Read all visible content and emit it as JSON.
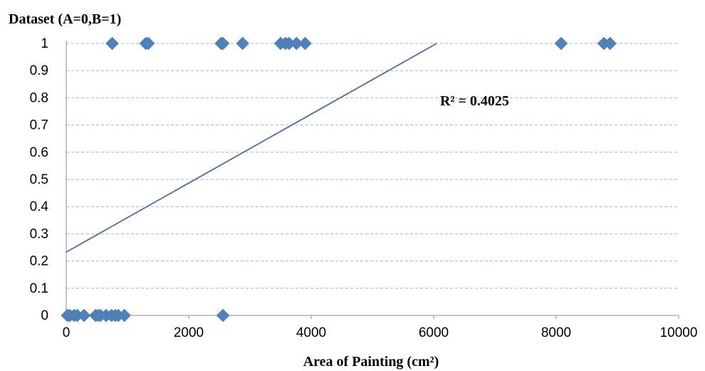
{
  "chart_data": {
    "type": "scatter",
    "title": "",
    "ylabel": "Dataset (A=0,B=1)",
    "xlabel": "Area of Painting (cm²)",
    "xlim": [
      0,
      10000
    ],
    "ylim": [
      0,
      1
    ],
    "x_ticks": [
      "0",
      "2000",
      "4000",
      "6000",
      "8000",
      "10000"
    ],
    "y_ticks": [
      "0",
      "0.1",
      "0.2",
      "0.3",
      "0.4",
      "0.5",
      "0.6",
      "0.7",
      "0.8",
      "0.9",
      "1"
    ],
    "grid": "horizontal dashed",
    "colors": {
      "marker": "#4f81bd",
      "trendline": "#4a6da3",
      "grid": "#9fb6d6"
    },
    "series": [
      {
        "points": [
          [
            20,
            0
          ],
          [
            60,
            0
          ],
          [
            130,
            0
          ],
          [
            180,
            0
          ],
          [
            290,
            0
          ],
          [
            480,
            0
          ],
          [
            520,
            0
          ],
          [
            560,
            0
          ],
          [
            650,
            0
          ],
          [
            740,
            0
          ],
          [
            800,
            0
          ],
          [
            850,
            0
          ],
          [
            950,
            0
          ],
          [
            2560,
            0
          ],
          [
            750,
            1
          ],
          [
            1300,
            1
          ],
          [
            1340,
            1
          ],
          [
            2530,
            1
          ],
          [
            2560,
            1
          ],
          [
            2880,
            1
          ],
          [
            3500,
            1
          ],
          [
            3580,
            1
          ],
          [
            3640,
            1
          ],
          [
            3760,
            1
          ],
          [
            3900,
            1
          ],
          [
            8080,
            1
          ],
          [
            8780,
            1
          ],
          [
            8880,
            1
          ]
        ]
      }
    ],
    "trendline": {
      "x": [
        0,
        6050
      ],
      "y": [
        0.233,
        1.0
      ]
    },
    "annotations": [
      {
        "text": "R² = 0.4025",
        "x": 6500,
        "y": 0.79
      }
    ]
  }
}
